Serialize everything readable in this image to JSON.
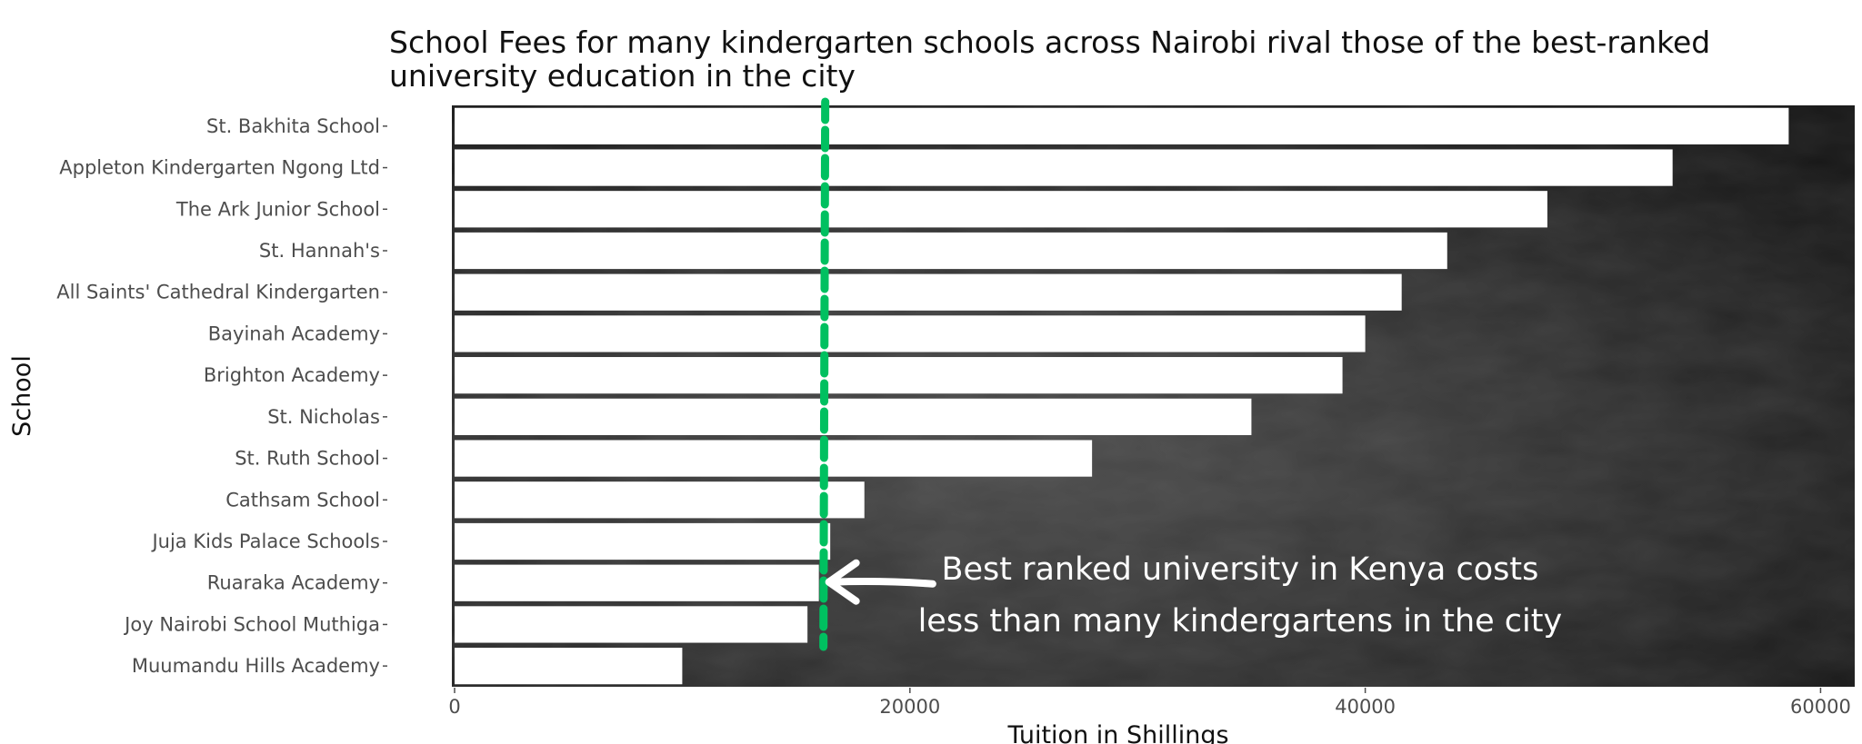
{
  "chart_data": {
    "type": "bar",
    "orientation": "horizontal",
    "title_lines": [
      "School Fees for many kindergarten schools across Nairobi rival those of the best-ranked",
      " university education in the city"
    ],
    "xlabel": "Tuition in Shillings",
    "ylabel": "School",
    "categories": [
      "St. Bakhita School",
      "Appleton Kindergarten Ngong Ltd",
      "The Ark Junior School",
      "St. Hannah's",
      "All Saints' Cathedral Kindergarten",
      "Bayinah Academy",
      "Brighton Academy",
      "St. Nicholas",
      "St. Ruth School",
      "Cathsam School",
      "Juja Kids Palace Schools",
      "Ruaraka Academy",
      "Joy Nairobi School Muthiga",
      "Muumandu Hills Academy"
    ],
    "values": [
      58600,
      53500,
      48000,
      43600,
      41600,
      40000,
      39000,
      35000,
      28000,
      18000,
      16500,
      16000,
      15500,
      10000
    ],
    "xlim": [
      0,
      61500
    ],
    "x_ticks": [
      0,
      20000,
      40000,
      60000
    ],
    "x_tick_labels": [
      "0",
      "20000",
      "40000",
      "60000"
    ],
    "reference_line": {
      "value": 16200,
      "color": "#00c060",
      "style": "dashed"
    },
    "annotation": {
      "lines": [
        "Best ranked university in Kenya costs",
        "less than many kindergartens in the city"
      ],
      "x": 34500,
      "arrow_from_x": 21000,
      "arrow_to_x": 16200,
      "arrow_at_category": "Ruaraka Academy"
    },
    "bar_color": "#ffffff",
    "panel_background": "#242424",
    "grid": false
  }
}
